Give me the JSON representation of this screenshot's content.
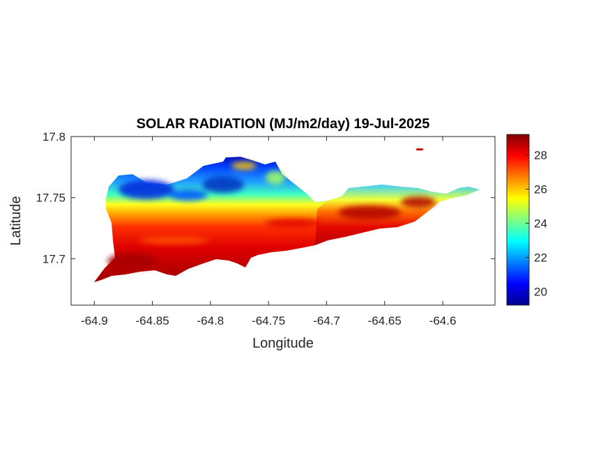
{
  "chart_data": {
    "type": "heatmap",
    "title": "SOLAR RADIATION (MJ/m2/day) 19-Jul-2025",
    "xlabel": "Longitude",
    "ylabel": "Latitude",
    "xlim": [
      -64.92,
      -64.555
    ],
    "ylim": [
      17.662,
      17.8
    ],
    "x_ticks": [
      "-64.9",
      "-64.85",
      "-64.8",
      "-64.75",
      "-64.7",
      "-64.65",
      "-64.6"
    ],
    "x_tick_values": [
      -64.9,
      -64.85,
      -64.8,
      -64.75,
      -64.7,
      -64.65,
      -64.6
    ],
    "y_ticks": [
      "17.8",
      "17.75",
      "17.7"
    ],
    "y_tick_values": [
      17.8,
      17.75,
      17.7
    ],
    "colorbar": {
      "colormap": "jet",
      "range": [
        19.2,
        29.2
      ],
      "ticks": [
        "20",
        "22",
        "24",
        "26",
        "28"
      ],
      "tick_values": [
        20,
        22,
        24,
        26,
        28
      ]
    },
    "grid": false,
    "description_values": {
      "north_min_approx": 19.8,
      "south_max_approx": 29.0
    }
  }
}
